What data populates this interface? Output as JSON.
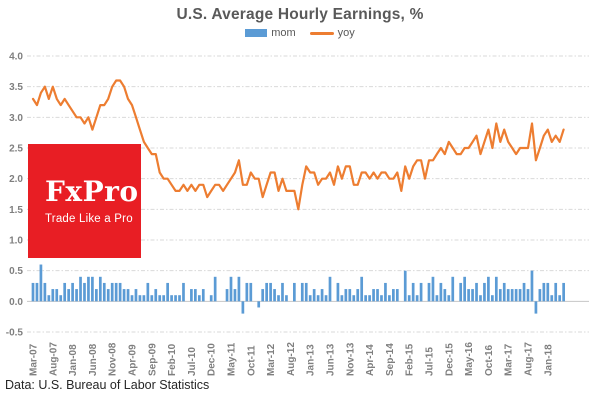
{
  "title": "U.S. Average Hourly Earnings, %",
  "footer": "Data: U.S. Bureau of Labor Statistics",
  "logo": {
    "brand": "FxPro",
    "tagline": "Trade Like a Pro",
    "bg_color": "#e81e24",
    "text_color": "#ffffff"
  },
  "legend": [
    {
      "label": "mom",
      "color": "#5B9BD5",
      "swatch": "bar"
    },
    {
      "label": "yoy",
      "color": "#ED7D31",
      "swatch": "line"
    }
  ],
  "colors": {
    "title_gray": "#595959",
    "axis_label_gray": "#7f7f7f",
    "gridline": "#d9d9d9",
    "zero_axis": "#c6c6c6",
    "background": "#ffffff"
  },
  "chart_data": {
    "type": "bar",
    "subtype": "combo-bar-line",
    "title": "U.S. Average Hourly Earnings, %",
    "x_frequency": "monthly",
    "x_start": "Mar-07",
    "x_end": "May-18",
    "x_tick_labels": [
      "Mar-07",
      "Aug-07",
      "Jan-08",
      "Jun-08",
      "Nov-08",
      "Apr-09",
      "Sep-09",
      "Feb-10",
      "Jul-10",
      "Dec-10",
      "May-11",
      "Oct-11",
      "Mar-12",
      "Aug-12",
      "Jan-13",
      "Jun-13",
      "Nov-13",
      "Apr-14",
      "Sep-14",
      "Feb-15",
      "Jul-15",
      "Dec-15",
      "May-16",
      "Oct-16",
      "Mar-17",
      "Aug-17",
      "Jan-18"
    ],
    "x_label_every_n_months": 5,
    "y_ticks": [
      4.0,
      3.5,
      3.0,
      2.5,
      2.0,
      1.5,
      1.0,
      0.5,
      0.0,
      -0.5
    ],
    "ylim": [
      -0.5,
      4.0
    ],
    "grid": "dashed-horizontal",
    "legend_position": "top-center",
    "series": [
      {
        "name": "mom",
        "type": "bar",
        "color": "#5B9BD5",
        "values": [
          0.3,
          0.3,
          0.6,
          0.3,
          0.1,
          0.2,
          0.2,
          0.1,
          0.3,
          0.2,
          0.3,
          0.2,
          0.4,
          0.3,
          0.4,
          0.4,
          0.2,
          0.4,
          0.3,
          0.2,
          0.3,
          0.3,
          0.3,
          0.2,
          0.2,
          0.1,
          0.2,
          0.1,
          0.1,
          0.3,
          0.1,
          0.2,
          0.1,
          0.1,
          0.3,
          0.1,
          0.1,
          0.1,
          0.3,
          0.0,
          0.2,
          0.2,
          0.1,
          0.2,
          0.0,
          0.1,
          0.4,
          0.0,
          0.0,
          0.2,
          0.4,
          0.2,
          0.4,
          -0.2,
          0.3,
          0.3,
          0.0,
          -0.1,
          0.2,
          0.3,
          0.3,
          0.2,
          0.1,
          0.3,
          0.1,
          0.0,
          0.3,
          0.0,
          0.3,
          0.3,
          0.1,
          0.2,
          0.1,
          0.2,
          0.1,
          0.4,
          0.0,
          0.3,
          0.1,
          0.2,
          0.2,
          0.1,
          0.2,
          0.4,
          0.1,
          0.1,
          0.2,
          0.2,
          0.1,
          0.3,
          0.1,
          0.2,
          0.2,
          0.0,
          0.5,
          0.1,
          0.3,
          0.1,
          0.3,
          0.0,
          0.3,
          0.4,
          0.1,
          0.3,
          0.2,
          0.1,
          0.4,
          0.0,
          0.3,
          0.4,
          0.2,
          0.2,
          0.3,
          0.1,
          0.3,
          0.4,
          0.1,
          0.4,
          0.2,
          0.3,
          0.2,
          0.2,
          0.2,
          0.2,
          0.3,
          0.2,
          0.5,
          -0.2,
          0.2,
          0.3,
          0.3,
          0.1,
          0.3,
          0.1,
          0.3
        ]
      },
      {
        "name": "yoy",
        "type": "line",
        "color": "#ED7D31",
        "values": [
          3.3,
          3.2,
          3.4,
          3.5,
          3.3,
          3.5,
          3.3,
          3.2,
          3.3,
          3.2,
          3.1,
          3.0,
          3.0,
          2.9,
          3.0,
          2.8,
          3.0,
          3.2,
          3.2,
          3.3,
          3.5,
          3.6,
          3.6,
          3.5,
          3.3,
          3.2,
          3.0,
          2.8,
          2.6,
          2.5,
          2.4,
          2.4,
          2.1,
          2.0,
          2.0,
          1.9,
          1.8,
          1.8,
          1.9,
          1.8,
          1.9,
          1.8,
          1.9,
          1.9,
          1.7,
          1.8,
          1.9,
          1.9,
          1.8,
          1.9,
          2.0,
          2.1,
          2.3,
          1.9,
          1.9,
          2.1,
          2.0,
          2.0,
          1.7,
          1.9,
          2.1,
          2.1,
          1.8,
          2.0,
          1.8,
          1.8,
          1.8,
          1.5,
          1.9,
          2.2,
          2.1,
          2.1,
          1.9,
          2.0,
          2.0,
          2.1,
          1.9,
          2.2,
          2.0,
          2.2,
          2.2,
          1.9,
          1.9,
          2.1,
          2.1,
          2.0,
          2.1,
          2.0,
          2.1,
          2.1,
          2.0,
          2.0,
          2.1,
          1.8,
          2.2,
          2.0,
          2.2,
          2.3,
          2.3,
          2.0,
          2.3,
          2.3,
          2.4,
          2.5,
          2.4,
          2.6,
          2.5,
          2.4,
          2.4,
          2.5,
          2.5,
          2.6,
          2.7,
          2.4,
          2.6,
          2.8,
          2.5,
          2.9,
          2.6,
          2.8,
          2.6,
          2.5,
          2.4,
          2.5,
          2.5,
          2.5,
          2.9,
          2.3,
          2.5,
          2.7,
          2.8,
          2.6,
          2.7,
          2.6,
          2.8
        ]
      }
    ]
  }
}
